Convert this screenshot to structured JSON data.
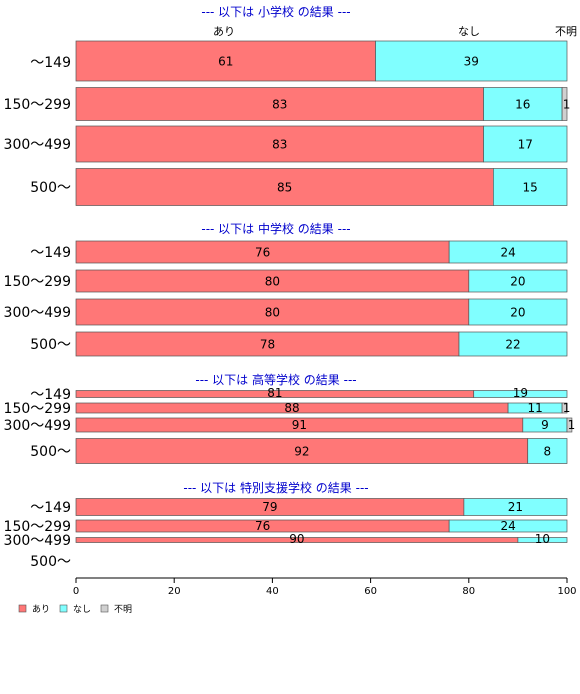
{
  "colors": {
    "あり": "#ff7777",
    "なし": "#80ffff",
    "不明": "#d0d0d0",
    "bar_stroke": "#555555",
    "title": "#0000cc"
  },
  "column_headers": [
    "あり",
    "なし",
    "不明"
  ],
  "legend": [
    "あり",
    "なし",
    "不明"
  ],
  "x_ticks": [
    "0",
    "20",
    "40",
    "60",
    "80",
    "100"
  ],
  "chart_data": {
    "type": "bar",
    "orientation": "horizontal",
    "stacked": true,
    "xlim": [
      0,
      100
    ],
    "series_names": [
      "あり",
      "なし",
      "不明"
    ],
    "groups": [
      {
        "title": "--- 以下は 小学校 の結果 ---",
        "rows": [
          {
            "label": "～149",
            "values": [
              61,
              39,
              0
            ]
          },
          {
            "label": "150～299",
            "values": [
              83,
              16,
              1
            ]
          },
          {
            "label": "300～499",
            "values": [
              83,
              17,
              0
            ]
          },
          {
            "label": "500～",
            "values": [
              85,
              15,
              0
            ]
          }
        ]
      },
      {
        "title": "--- 以下は 中学校 の結果 ---",
        "rows": [
          {
            "label": "～149",
            "values": [
              76,
              24,
              0
            ]
          },
          {
            "label": "150～299",
            "values": [
              80,
              20,
              0
            ]
          },
          {
            "label": "300～499",
            "values": [
              80,
              20,
              0
            ]
          },
          {
            "label": "500～",
            "values": [
              78,
              22,
              0
            ]
          }
        ]
      },
      {
        "title": "--- 以下は 高等学校 の結果 ---",
        "rows": [
          {
            "label": "～149",
            "values": [
              81,
              19,
              0
            ]
          },
          {
            "label": "150～299",
            "values": [
              88,
              11,
              1
            ]
          },
          {
            "label": "300～499",
            "values": [
              91,
              9,
              1
            ]
          },
          {
            "label": "500～",
            "values": [
              92,
              8,
              0
            ]
          }
        ]
      },
      {
        "title": "--- 以下は 特別支援学校 の結果 ---",
        "rows": [
          {
            "label": "～149",
            "values": [
              79,
              21,
              0
            ]
          },
          {
            "label": "150～299",
            "values": [
              76,
              24,
              0
            ]
          },
          {
            "label": "300～499",
            "values": [
              90,
              10,
              0
            ]
          },
          {
            "label": "500～",
            "values": [
              0,
              0,
              0
            ]
          }
        ]
      }
    ]
  }
}
